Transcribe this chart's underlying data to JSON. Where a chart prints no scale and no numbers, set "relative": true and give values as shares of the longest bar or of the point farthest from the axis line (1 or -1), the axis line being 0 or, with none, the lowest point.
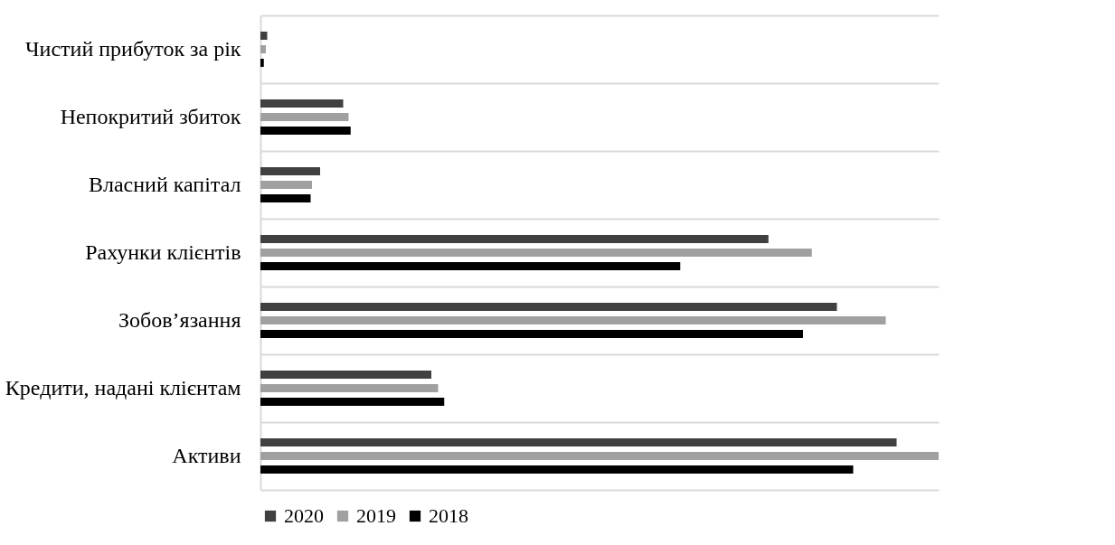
{
  "chart_data": {
    "type": "bar",
    "orientation": "horizontal",
    "relative": true,
    "grid": "y",
    "legend": "bottom",
    "categories": [
      "Чистий прибуток за рік",
      "Непокритий збиток",
      "Власний капітал",
      "Рахунки клієнтів",
      "Зобов’язання",
      "Кредити, надані клієнтам",
      "Активи"
    ],
    "series": [
      {
        "name": "2020",
        "color": "#404040",
        "values": [
          0.01,
          0.122,
          0.088,
          0.749,
          0.85,
          0.252,
          0.938
        ]
      },
      {
        "name": "2019",
        "color": "#a0a0a0",
        "values": [
          0.008,
          0.13,
          0.076,
          0.813,
          0.922,
          0.262,
          1
        ]
      },
      {
        "name": "2018",
        "color": "#000000",
        "values": [
          0.005,
          0.133,
          0.074,
          0.619,
          0.8,
          0.271,
          0.874
        ]
      }
    ]
  }
}
